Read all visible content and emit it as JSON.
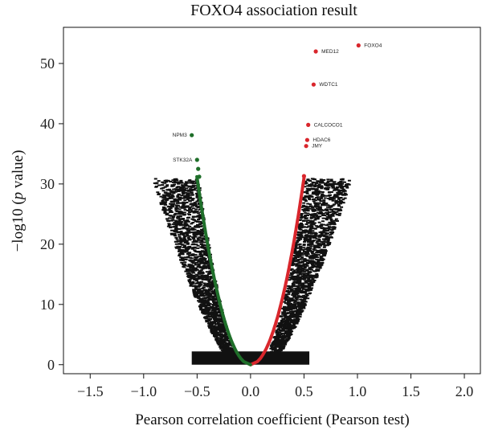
{
  "chart_data": {
    "type": "scatter",
    "title": "FOXO4 association result",
    "xlabel": "Pearson correlation coefficient (Pearson test)",
    "ylabel_main": "−log10 (",
    "ylabel_italic": "p",
    "ylabel_tail": " value)",
    "xlim": [
      -1.75,
      2.15
    ],
    "ylim": [
      -1.5,
      56
    ],
    "x_ticks": [
      -1.5,
      -1.0,
      -0.5,
      0.0,
      0.5,
      1.0,
      1.5,
      2.0
    ],
    "x_tick_labels": [
      "−1.5",
      "−1.0",
      "−0.5",
      "0.0",
      "0.5",
      "1.0",
      "1.5",
      "2.0"
    ],
    "y_ticks": [
      0,
      10,
      20,
      30,
      40,
      50
    ],
    "y_tick_labels": [
      "0",
      "10",
      "20",
      "30",
      "40",
      "50"
    ],
    "grid": false,
    "colors": {
      "positive": "#d9262c",
      "negative": "#1f6f2a",
      "background": "#111111",
      "neutral": "#333333"
    },
    "series": [
      {
        "color": "#d9262c",
        "points": [
          {
            "label": "FOXO4",
            "x": 1.01,
            "y": 53.0
          },
          {
            "label": "MED12",
            "x": 0.61,
            "y": 52.0
          },
          {
            "label": "WDTC1",
            "x": 0.59,
            "y": 46.5
          },
          {
            "label": "CALCOCO1",
            "x": 0.54,
            "y": 39.8
          },
          {
            "label": "HDAC6",
            "x": 0.53,
            "y": 37.3
          },
          {
            "label": "JMY",
            "x": 0.52,
            "y": 36.3
          },
          {
            "label": "",
            "x": 0.5,
            "y": 31.3
          }
        ]
      },
      {
        "color": "#1f6f2a",
        "points": [
          {
            "label": "NPM3",
            "x": -0.55,
            "y": 38.1
          },
          {
            "label": "STK32A",
            "x": -0.5,
            "y": 34.0
          },
          {
            "label": "",
            "x": -0.49,
            "y": 32.5
          },
          {
            "label": "",
            "x": -0.48,
            "y": 31.2
          }
        ]
      }
    ]
  }
}
